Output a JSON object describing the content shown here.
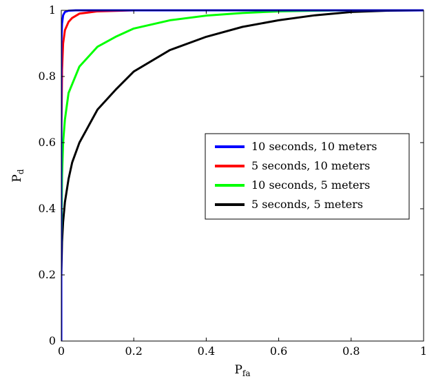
{
  "chart_data": {
    "type": "line",
    "title": "",
    "xlabel": "P",
    "xlabel_sub": "fa",
    "ylabel": "P",
    "ylabel_sub": "d",
    "xlim": [
      0,
      1
    ],
    "ylim": [
      0,
      1
    ],
    "xticks": [
      0,
      0.2,
      0.4,
      0.6,
      0.8,
      1
    ],
    "xtick_labels": [
      "0",
      "0.2",
      "0.4",
      "0.6",
      "0.8",
      "1"
    ],
    "yticks": [
      0,
      0.2,
      0.4,
      0.6,
      0.8,
      1
    ],
    "ytick_labels": [
      "0",
      "0.2",
      "0.4",
      "0.6",
      "0.8",
      "1"
    ],
    "grid": false,
    "legend_position": "center-right",
    "series": [
      {
        "name": "10 seconds, 10 meters",
        "color": "#0000ff",
        "x": [
          0,
          0,
          0.002,
          0.005,
          0.01,
          0.02,
          0.04,
          0.06,
          0.1,
          1
        ],
        "y": [
          0,
          0.9,
          0.96,
          0.985,
          0.995,
          0.999,
          1,
          1,
          1,
          1
        ]
      },
      {
        "name": "5 seconds, 10 meters",
        "color": "#ff0000",
        "x": [
          0,
          0,
          0.002,
          0.005,
          0.01,
          0.02,
          0.03,
          0.05,
          0.1,
          0.2,
          0.4,
          1
        ],
        "y": [
          0,
          0.6,
          0.82,
          0.9,
          0.94,
          0.965,
          0.977,
          0.99,
          0.997,
          1,
          1,
          1
        ]
      },
      {
        "name": "10 seconds, 5 meters",
        "color": "#00ff00",
        "x": [
          0,
          0,
          0.002,
          0.005,
          0.01,
          0.02,
          0.05,
          0.1,
          0.15,
          0.2,
          0.3,
          0.4,
          0.5,
          0.6,
          0.7,
          0.8,
          1
        ],
        "y": [
          0,
          0.28,
          0.5,
          0.6,
          0.67,
          0.75,
          0.83,
          0.89,
          0.92,
          0.945,
          0.97,
          0.984,
          0.992,
          0.997,
          0.999,
          1,
          1
        ]
      },
      {
        "name": "5 seconds, 5 meters",
        "color": "#000000",
        "x": [
          0,
          0,
          0.002,
          0.005,
          0.01,
          0.02,
          0.03,
          0.05,
          0.1,
          0.15,
          0.2,
          0.3,
          0.4,
          0.5,
          0.6,
          0.7,
          0.8,
          0.9,
          1
        ],
        "y": [
          0,
          0.2,
          0.3,
          0.36,
          0.42,
          0.49,
          0.54,
          0.6,
          0.7,
          0.76,
          0.815,
          0.88,
          0.92,
          0.95,
          0.97,
          0.985,
          0.995,
          0.999,
          1
        ]
      }
    ]
  }
}
